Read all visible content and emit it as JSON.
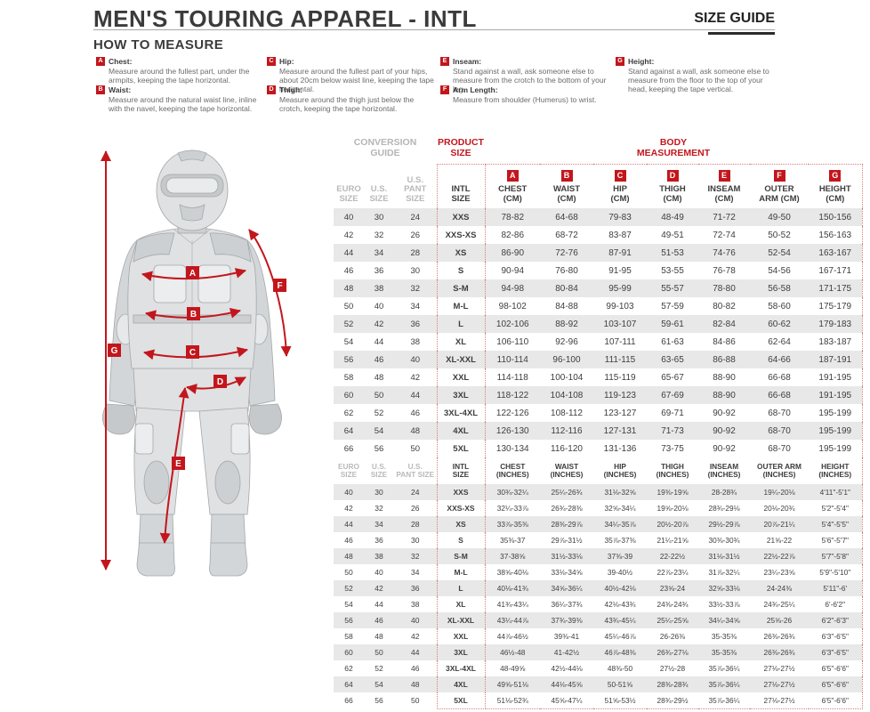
{
  "header": {
    "title": "MEN'S TOURING APPAREL - INTL",
    "size_guide": "SIZE GUIDE"
  },
  "how_to_measure": {
    "heading": "HOW TO MEASURE",
    "items": [
      {
        "letter": "A",
        "label": "Chest:",
        "text": "Measure around the fullest part, under the armpits, keeping the tape horizontal."
      },
      {
        "letter": "B",
        "label": "Waist:",
        "text": "Measure around the natural waist line, inline with the navel, keeping the tape horizontal."
      },
      {
        "letter": "C",
        "label": "Hip:",
        "text": "Measure around the fullest part of your hips, about 20cm below waist line, keeping the tape horizontal."
      },
      {
        "letter": "D",
        "label": "Thigh:",
        "text": "Measure around the thigh just below the crotch, keeping the tape horizontal."
      },
      {
        "letter": "E",
        "label": "Inseam:",
        "text": "Stand against a wall, ask someone else to measure from the crotch to the bottom of your leg."
      },
      {
        "letter": "F",
        "label": "Arm Length:",
        "text": "Measure from shoulder (Humerus) to wrist."
      },
      {
        "letter": "G",
        "label": "Height:",
        "text": "Stand against a wall, ask someone else to measure from the floor to the top of your head, keeping the tape vertical."
      }
    ]
  },
  "figure": {
    "badge_letters": [
      "A",
      "B",
      "C",
      "D",
      "E",
      "F",
      "G"
    ]
  },
  "table": {
    "group_headers": {
      "conversion": [
        "CONVERSION",
        "GUIDE"
      ],
      "product": [
        "PRODUCT",
        "SIZE"
      ],
      "body": [
        "BODY",
        "MEASUREMENT"
      ]
    },
    "cm": {
      "header": [
        {
          "lines": [
            "EURO",
            "SIZE"
          ]
        },
        {
          "lines": [
            "U.S.",
            "SIZE"
          ]
        },
        {
          "lines": [
            "U.S.",
            "PANT SIZE"
          ]
        },
        {
          "lines": [
            "INTL",
            "SIZE"
          ]
        },
        {
          "badge": "A",
          "lines": [
            "CHEST",
            "(CM)"
          ]
        },
        {
          "badge": "B",
          "lines": [
            "WAIST",
            "(CM)"
          ]
        },
        {
          "badge": "C",
          "lines": [
            "HIP",
            "(CM)"
          ]
        },
        {
          "badge": "D",
          "lines": [
            "THIGH",
            "(CM)"
          ]
        },
        {
          "badge": "E",
          "lines": [
            "INSEAM",
            "(CM)"
          ]
        },
        {
          "badge": "F",
          "lines": [
            "OUTER",
            "ARM (CM)"
          ]
        },
        {
          "badge": "G",
          "lines": [
            "HEIGHT",
            "(CM)"
          ]
        }
      ],
      "rows": [
        [
          "40",
          "30",
          "24",
          "XXS",
          "78-82",
          "64-68",
          "79-83",
          "48-49",
          "71-72",
          "49-50",
          "150-156"
        ],
        [
          "42",
          "32",
          "26",
          "XXS-XS",
          "82-86",
          "68-72",
          "83-87",
          "49-51",
          "72-74",
          "50-52",
          "156-163"
        ],
        [
          "44",
          "34",
          "28",
          "XS",
          "86-90",
          "72-76",
          "87-91",
          "51-53",
          "74-76",
          "52-54",
          "163-167"
        ],
        [
          "46",
          "36",
          "30",
          "S",
          "90-94",
          "76-80",
          "91-95",
          "53-55",
          "76-78",
          "54-56",
          "167-171"
        ],
        [
          "48",
          "38",
          "32",
          "S-M",
          "94-98",
          "80-84",
          "95-99",
          "55-57",
          "78-80",
          "56-58",
          "171-175"
        ],
        [
          "50",
          "40",
          "34",
          "M-L",
          "98-102",
          "84-88",
          "99-103",
          "57-59",
          "80-82",
          "58-60",
          "175-179"
        ],
        [
          "52",
          "42",
          "36",
          "L",
          "102-106",
          "88-92",
          "103-107",
          "59-61",
          "82-84",
          "60-62",
          "179-183"
        ],
        [
          "54",
          "44",
          "38",
          "XL",
          "106-110",
          "92-96",
          "107-111",
          "61-63",
          "84-86",
          "62-64",
          "183-187"
        ],
        [
          "56",
          "46",
          "40",
          "XL-XXL",
          "110-114",
          "96-100",
          "111-115",
          "63-65",
          "86-88",
          "64-66",
          "187-191"
        ],
        [
          "58",
          "48",
          "42",
          "XXL",
          "114-118",
          "100-104",
          "115-119",
          "65-67",
          "88-90",
          "66-68",
          "191-195"
        ],
        [
          "60",
          "50",
          "44",
          "3XL",
          "118-122",
          "104-108",
          "119-123",
          "67-69",
          "88-90",
          "66-68",
          "191-195"
        ],
        [
          "62",
          "52",
          "46",
          "3XL-4XL",
          "122-126",
          "108-112",
          "123-127",
          "69-71",
          "90-92",
          "68-70",
          "195-199"
        ],
        [
          "64",
          "54",
          "48",
          "4XL",
          "126-130",
          "112-116",
          "127-131",
          "71-73",
          "90-92",
          "68-70",
          "195-199"
        ],
        [
          "66",
          "56",
          "50",
          "5XL",
          "130-134",
          "116-120",
          "131-136",
          "73-75",
          "90-92",
          "68-70",
          "195-199"
        ]
      ]
    },
    "inches": {
      "header": [
        {
          "lines": [
            "EURO",
            "SIZE"
          ]
        },
        {
          "lines": [
            "U.S.",
            "SIZE"
          ]
        },
        {
          "lines": [
            "U.S.",
            "PANT SIZE"
          ]
        },
        {
          "lines": [
            "INTL",
            "SIZE"
          ]
        },
        {
          "lines": [
            "CHEST",
            "(INCHES)"
          ]
        },
        {
          "lines": [
            "WAIST",
            "(INCHES)"
          ]
        },
        {
          "lines": [
            "HIP",
            "(INCHES)"
          ]
        },
        {
          "lines": [
            "THIGH",
            "(INCHES)"
          ]
        },
        {
          "lines": [
            "INSEAM",
            "(INCHES)"
          ]
        },
        {
          "lines": [
            "OUTER ARM",
            "(INCHES)"
          ]
        },
        {
          "lines": [
            "HEIGHT",
            "(INCHES)"
          ]
        }
      ],
      "rows": [
        [
          "40",
          "30",
          "24",
          "XXS",
          "30¾-32¼",
          "25¼-26¾",
          "31⅛-32⅝",
          "19⅜-19⅝",
          "28-28¾",
          "19¼-20⅛",
          "4'11\"-5'1\""
        ],
        [
          "42",
          "32",
          "26",
          "XXS-XS",
          "32¼-33⅞",
          "26¾-28⅜",
          "32⅝-34¼",
          "19⅝-20⅛",
          "28¾-29⅛",
          "20⅛-20¾",
          "5'2\"-5'4\""
        ],
        [
          "44",
          "34",
          "28",
          "XS",
          "33⅞-35⅜",
          "28⅜-29⅞",
          "34¼-35⅞",
          "20½-20⅞",
          "29½-29⅞",
          "20⅞-21¼",
          "5'4\"-5'5\""
        ],
        [
          "46",
          "36",
          "30",
          "S",
          "35⅜-37",
          "29⅞-31½",
          "35⅞-37⅜",
          "21¼-21⅝",
          "30⅜-30¾",
          "21⅝-22",
          "5'6\"-5'7\""
        ],
        [
          "48",
          "38",
          "32",
          "S-M",
          "37-38⅝",
          "31½-33⅛",
          "37⅜-39",
          "22-22½",
          "31⅛-31½",
          "22½-22⅞",
          "5'7\"-5'8\""
        ],
        [
          "50",
          "40",
          "34",
          "M-L",
          "38⅝-40⅛",
          "33⅛-34⅝",
          "39-40½",
          "22⅞-23¼",
          "31⅞-32¼",
          "23¼-23⅝",
          "5'9\"-5'10\""
        ],
        [
          "52",
          "42",
          "36",
          "L",
          "40⅛-41¾",
          "34⅝-36¼",
          "40½-42⅛",
          "23⅝-24",
          "32⅝-33⅛",
          "24-24⅜",
          "5'11\"-6'"
        ],
        [
          "54",
          "44",
          "38",
          "XL",
          "41¾-43¼",
          "36¼-37¾",
          "42⅛-43¾",
          "24⅜-24¾",
          "33½-33⅞",
          "24¾-25¼",
          "6'-6'2\""
        ],
        [
          "56",
          "46",
          "40",
          "XL-XXL",
          "43¼-44⅞",
          "37¾-39⅜",
          "43¾-45¼",
          "25¼-25⅝",
          "34¼-34⅝",
          "25⅝-26",
          "6'2\"-6'3\""
        ],
        [
          "58",
          "48",
          "42",
          "XXL",
          "44⅞-46½",
          "39⅜-41",
          "45¼-46⅞",
          "26-26⅜",
          "35-35⅜",
          "26⅜-26¾",
          "6'3\"-6'5\""
        ],
        [
          "60",
          "50",
          "44",
          "3XL",
          "46½-48",
          "41-42½",
          "46⅞-48⅜",
          "26¾-27⅛",
          "35-35⅜",
          "26⅜-26¾",
          "6'3\"-6'5\""
        ],
        [
          "62",
          "52",
          "46",
          "3XL-4XL",
          "48-49⅝",
          "42½-44⅛",
          "48⅜-50",
          "27½-28",
          "35⅞-36¼",
          "27⅛-27½",
          "6'5\"-6'6\""
        ],
        [
          "64",
          "54",
          "48",
          "4XL",
          "49⅝-51⅛",
          "44⅛-45⅝",
          "50-51⅝",
          "28⅜-28¾",
          "35⅞-36¼",
          "27⅛-27½",
          "6'5\"-6'6\""
        ],
        [
          "66",
          "56",
          "50",
          "5XL",
          "51⅛-52¾",
          "45⅝-47¼",
          "51⅝-53½",
          "28¾-29½",
          "35⅞-36¼",
          "27⅛-27½",
          "6'5\"-6'6\""
        ]
      ]
    }
  },
  "colors": {
    "accent_red": "#c3161c",
    "dotted_border": "#d98080",
    "row_stripe": "#e8e8e8",
    "conversion_text": "#b9b9b9",
    "title_text": "#3b3b3b"
  }
}
